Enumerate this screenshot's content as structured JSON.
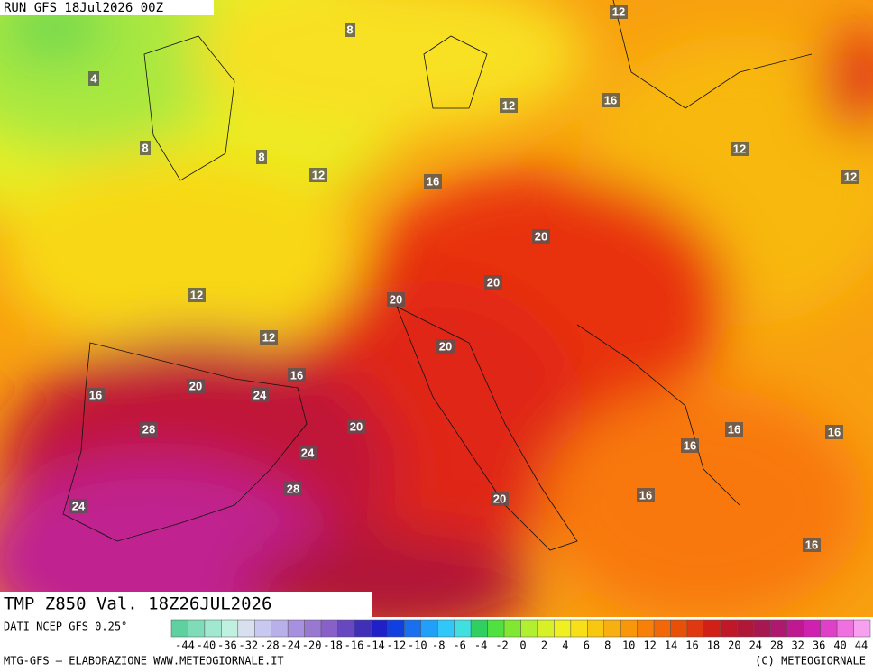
{
  "header": {
    "run": "RUN GFS 18Jul2026 00Z",
    "title": "TMP Z850 Val. 18Z26JUL2026"
  },
  "footer": {
    "source": "DATI NCEP GFS 0.25°",
    "credit": "MTG-GFS — ELABORAZIONE WWW.METEOGIORNALE.IT",
    "copyright": "(C) METEOGIORNALE"
  },
  "contour_labels": [
    12,
    8,
    4,
    12,
    16,
    8,
    8,
    12,
    16,
    12,
    12,
    20,
    20,
    20,
    12,
    12,
    20,
    16,
    16,
    20,
    24,
    20,
    28,
    24,
    16,
    16,
    16,
    28,
    20,
    16,
    24,
    16
  ],
  "colorbar": {
    "labels": [
      -44,
      -40,
      -36,
      -32,
      -28,
      -24,
      -20,
      -18,
      -16,
      -14,
      -12,
      -10,
      -8,
      -6,
      -4,
      -2,
      0,
      2,
      4,
      6,
      8,
      10,
      12,
      14,
      16,
      18,
      20,
      24,
      28,
      32,
      36,
      40,
      44
    ],
    "colors": [
      "#5fd0a0",
      "#7fdcb8",
      "#a0e8d0",
      "#c0f0e0",
      "#d8e0f0",
      "#c8c8f0",
      "#b8b0e8",
      "#a890e0",
      "#9878d0",
      "#8860c8",
      "#6848c0",
      "#4030b8",
      "#2020c8",
      "#1040e0",
      "#1870f0",
      "#20a0f8",
      "#30c8f8",
      "#40e0e0",
      "#30d060",
      "#50e040",
      "#80e830",
      "#b0f030",
      "#d8f028",
      "#f0f020",
      "#f8e018",
      "#f8c810",
      "#f8b010",
      "#f89808",
      "#f88008",
      "#f06808",
      "#e85008",
      "#e03810",
      "#d02018",
      "#c01828",
      "#b01838",
      "#a81850",
      "#b01870",
      "#c01890",
      "#d020b0",
      "#e040c8",
      "#f070e0",
      "#f8a0f0"
    ]
  }
}
